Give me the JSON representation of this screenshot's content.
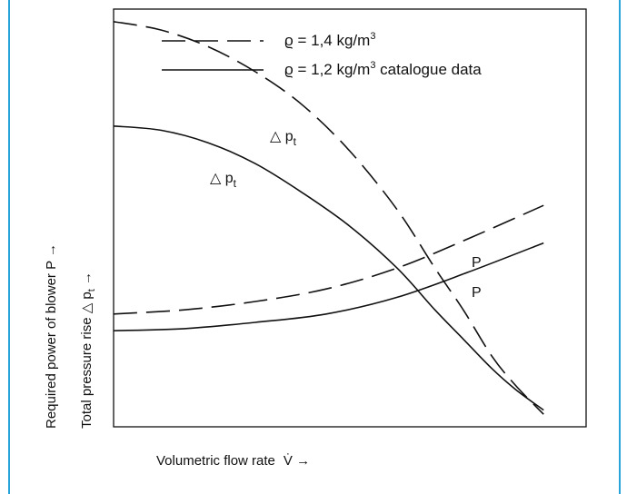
{
  "colors": {
    "frame": "#29a3dc",
    "ink": "#111111",
    "background": "#ffffff"
  },
  "chart_data": {
    "type": "line",
    "title": "",
    "xlabel": "Volumetric flow rate",
    "xlabel_symbol": "V̇ →",
    "ylabel_outer": "Required power of blower P →",
    "ylabel_inner_prefix": "Total pressure rise △ p",
    "ylabel_inner_sub": "t",
    "ylabel_inner_suffix": " →",
    "x_ticks": "none",
    "y_ticks": "none",
    "xlim": [
      0,
      100
    ],
    "ylim": [
      0,
      100
    ],
    "grid": false,
    "legend_position": "top",
    "legend": [
      {
        "symbol": "ϱ",
        "text": " = 1,4 kg/m",
        "sup": "3",
        "extra": "",
        "style": "dashed"
      },
      {
        "symbol": "ϱ",
        "text": " = 1,2 kg/m",
        "sup": "3",
        "extra": " catalogue data",
        "style": "solid"
      }
    ],
    "series": [
      {
        "id": "dp-rho14",
        "style": "dashed",
        "label": "△ p",
        "label_sub": "t",
        "x": [
          0,
          10,
          20,
          30,
          40,
          50,
          60,
          68,
          74,
          80,
          85,
          91
        ],
        "y": [
          97,
          95,
          91,
          85,
          77,
          66,
          52,
          38,
          28,
          17,
          10,
          3
        ]
      },
      {
        "id": "dp-rho12",
        "style": "solid",
        "label": "△ p",
        "label_sub": "t",
        "x": [
          0,
          10,
          20,
          30,
          40,
          50,
          60,
          68,
          74,
          80,
          85,
          91
        ],
        "y": [
          72,
          71,
          68,
          63,
          56,
          48,
          38,
          28,
          21,
          14,
          9,
          4
        ]
      },
      {
        "id": "p-rho14",
        "style": "dashed",
        "label": "P",
        "label_sub": "",
        "x": [
          0,
          15,
          30,
          45,
          60,
          75,
          91
        ],
        "y": [
          27,
          28,
          30,
          33,
          38,
          45,
          53
        ]
      },
      {
        "id": "p-rho12",
        "style": "solid",
        "label": "P",
        "label_sub": "",
        "x": [
          0,
          15,
          30,
          45,
          60,
          75,
          91
        ],
        "y": [
          23,
          23.5,
          25,
          27,
          31,
          37,
          44
        ]
      }
    ]
  }
}
